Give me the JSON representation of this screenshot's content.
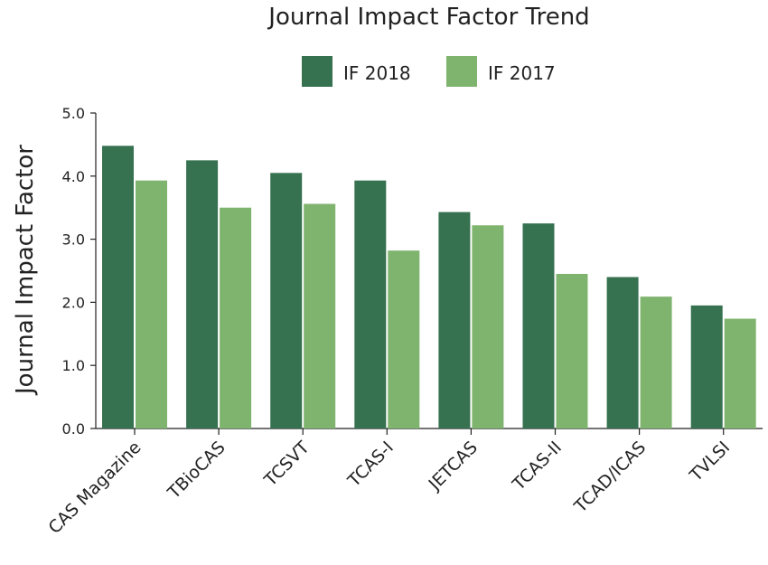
{
  "chart_data": {
    "type": "bar",
    "title": "Journal Impact Factor Trend",
    "xlabel": "",
    "ylabel": "Journal Impact Factor",
    "categories": [
      "CAS Magazine",
      "TBioCAS",
      "TCSVT",
      "TCAS-I",
      "JETCAS",
      "TCAS-II",
      "TCAD/ICAS",
      "TVLSI"
    ],
    "series": [
      {
        "name": "IF 2018",
        "color": "#367150",
        "values": [
          4.48,
          4.25,
          4.05,
          3.93,
          3.43,
          3.25,
          2.4,
          1.95
        ]
      },
      {
        "name": "IF 2017",
        "color": "#7FB46E",
        "values": [
          3.93,
          3.5,
          3.56,
          2.82,
          3.22,
          2.45,
          2.09,
          1.74
        ]
      }
    ],
    "ylim": [
      0,
      5.0
    ],
    "yticks": [
      "0.0",
      "1.0",
      "2.0",
      "3.0",
      "4.0",
      "5.0"
    ],
    "grid": false,
    "legend_position": "top-center"
  }
}
